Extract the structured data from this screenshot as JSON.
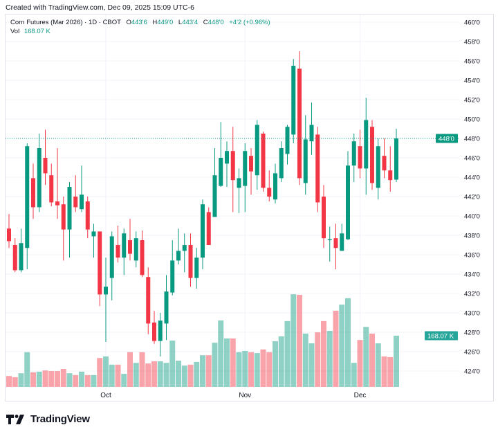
{
  "created_text": "Created with TradingView.com, Dec 09, 2025 15:09 UTC-6",
  "legend": {
    "symbol": "Corn Futures (Mar 2026) · 1D · CBOT",
    "o_label": "O",
    "o_value": "443'6",
    "h_label": "H",
    "h_value": "449'0",
    "l_label": "L",
    "l_value": "443'4",
    "c_label": "C",
    "c_value": "448'0",
    "change": "+4'2 (+0.96%)",
    "vol_label": "Vol",
    "vol_value": "168.07 K"
  },
  "price_axis": {
    "ticks": [
      "460'0",
      "458'0",
      "456'0",
      "454'0",
      "452'0",
      "450'0",
      "448'0",
      "446'0",
      "444'0",
      "442'0",
      "440'0",
      "438'0",
      "436'0",
      "434'0",
      "432'0",
      "430'0",
      "428'0",
      "426'0",
      "424'0"
    ],
    "tick_values": [
      460,
      458,
      456,
      454,
      452,
      450,
      448,
      446,
      444,
      442,
      440,
      438,
      436,
      434,
      432,
      430,
      428,
      426,
      424
    ],
    "last_price_label": "448'0",
    "last_price": 448,
    "volume_label": "168.07 K"
  },
  "time_axis": {
    "labels": [
      {
        "text": "Oct",
        "index": 16
      },
      {
        "text": "Nov",
        "index": 39
      },
      {
        "text": "Dec",
        "index": 58
      }
    ]
  },
  "colors": {
    "up": "#089981",
    "down": "#f23645",
    "up_vol": "rgba(8,153,129,0.45)",
    "down_vol": "rgba(242,54,69,0.45)",
    "grid": "#f0f3fa"
  },
  "candles": [
    [
      438.7,
      440.2,
      436.7,
      437.4,
      36
    ],
    [
      437.0,
      437.7,
      434.2,
      434.4,
      32
    ],
    [
      434.4,
      438.7,
      434.2,
      437.2,
      45
    ],
    [
      436.7,
      447.5,
      434.5,
      447.2,
      114
    ],
    [
      443.9,
      445.4,
      439.7,
      440.9,
      48
    ],
    [
      440.9,
      448.5,
      440.4,
      447.0,
      50
    ],
    [
      446.0,
      448.9,
      443.2,
      444.4,
      54
    ],
    [
      444.2,
      445.4,
      441.0,
      441.4,
      52
    ],
    [
      441.5,
      447.0,
      439.7,
      441.1,
      52
    ],
    [
      441.2,
      442.0,
      435.4,
      438.6,
      59
    ],
    [
      438.6,
      443.5,
      435.7,
      443.0,
      45
    ],
    [
      442.0,
      444.2,
      440.4,
      440.9,
      39
    ],
    [
      440.7,
      445.2,
      440.4,
      442.2,
      50
    ],
    [
      441.5,
      442.0,
      437.7,
      438.6,
      39
    ],
    [
      437.9,
      439.2,
      435.7,
      438.4,
      39
    ],
    [
      438.4,
      438.4,
      430.7,
      431.9,
      95
    ],
    [
      431.9,
      435.7,
      427.0,
      432.7,
      100
    ],
    [
      433.6,
      438.4,
      431.3,
      437.9,
      73
    ],
    [
      437.0,
      439.0,
      435.2,
      435.7,
      73
    ],
    [
      435.7,
      438.7,
      433.9,
      438.2,
      43
    ],
    [
      437.5,
      439.7,
      435.4,
      436.1,
      114
    ],
    [
      435.4,
      438.4,
      434.7,
      437.7,
      79
    ],
    [
      437.5,
      438.5,
      433.7,
      433.9,
      114
    ],
    [
      433.7,
      434.7,
      427.8,
      428.9,
      77
    ],
    [
      429.0,
      430.2,
      426.8,
      427.1,
      84
    ],
    [
      427.1,
      430.0,
      425.5,
      429.2,
      84
    ],
    [
      428.9,
      433.9,
      427.2,
      432.2,
      79
    ],
    [
      432.1,
      437.5,
      431.8,
      435.4,
      152
    ],
    [
      435.4,
      438.7,
      435.0,
      436.4,
      86
    ],
    [
      436.4,
      438.2,
      434.2,
      437.0,
      70
    ],
    [
      437.0,
      438.2,
      432.7,
      433.6,
      73
    ],
    [
      433.6,
      436.7,
      432.5,
      435.7,
      82
    ],
    [
      435.7,
      441.7,
      434.5,
      441.2,
      104
    ],
    [
      440.4,
      440.9,
      437.0,
      437.0,
      104
    ],
    [
      439.9,
      447.0,
      439.9,
      444.2,
      145
    ],
    [
      443.1,
      449.7,
      443.0,
      446.0,
      218
    ],
    [
      445.4,
      447.7,
      443.0,
      446.7,
      159
    ],
    [
      446.7,
      449.2,
      440.4,
      443.7,
      159
    ],
    [
      442.9,
      444.9,
      440.3,
      443.9,
      114
    ],
    [
      443.1,
      447.5,
      440.4,
      446.7,
      118
    ],
    [
      446.2,
      447.0,
      442.2,
      444.6,
      114
    ],
    [
      444.2,
      449.9,
      442.7,
      449.4,
      111
    ],
    [
      448.5,
      448.7,
      442.5,
      442.9,
      123
    ],
    [
      442.9,
      444.7,
      441.5,
      442.0,
      114
    ],
    [
      441.7,
      445.4,
      441.3,
      444.4,
      150
    ],
    [
      443.9,
      447.7,
      443.5,
      447.0,
      166
    ],
    [
      446.4,
      449.4,
      445.3,
      449.2,
      216
    ],
    [
      448.4,
      456.2,
      447.5,
      455.5,
      304
    ],
    [
      455.2,
      457.0,
      443.2,
      443.9,
      302
    ],
    [
      443.4,
      450.4,
      442.2,
      447.9,
      175
    ],
    [
      447.7,
      451.7,
      446.3,
      449.4,
      143
    ],
    [
      448.4,
      449.2,
      440.4,
      441.4,
      179
    ],
    [
      442.0,
      443.2,
      436.7,
      437.7,
      216
    ],
    [
      437.5,
      438.9,
      435.3,
      437.6,
      184
    ],
    [
      437.7,
      439.2,
      434.5,
      436.7,
      250
    ],
    [
      436.4,
      439.2,
      436.4,
      438.2,
      270
    ],
    [
      437.6,
      446.7,
      437.5,
      445.2,
      291
    ],
    [
      445.2,
      448.5,
      443.5,
      447.7,
      79
    ],
    [
      447.2,
      448.9,
      443.9,
      444.9,
      154
    ],
    [
      444.9,
      452.2,
      442.2,
      449.9,
      197
    ],
    [
      449.2,
      449.9,
      442.7,
      443.4,
      175
    ],
    [
      442.9,
      448.0,
      441.7,
      447.2,
      143
    ],
    [
      446.2,
      448.0,
      443.9,
      444.7,
      100
    ],
    [
      444.7,
      447.2,
      442.5,
      443.7,
      98
    ],
    [
      443.75,
      449.0,
      443.5,
      448.0,
      168.07
    ]
  ],
  "logo_text": "TradingView"
}
